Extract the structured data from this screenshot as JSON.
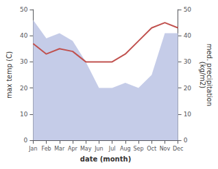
{
  "chart_data": {
    "type": "line",
    "xlabel": "date (month)",
    "ylabel": "max temp (C)",
    "y2label": "med. precipitation\n(kg/m2)",
    "categories": [
      "Jan",
      "Feb",
      "Mar",
      "Apr",
      "May",
      "Jun",
      "Jul",
      "Aug",
      "Sep",
      "Oct",
      "Nov",
      "Dec"
    ],
    "series": [
      {
        "type": "line",
        "color": "#c0504d",
        "values": [
          37,
          33,
          35,
          34,
          30,
          30,
          30,
          33,
          38,
          43,
          45,
          43
        ]
      },
      {
        "type": "area",
        "axis": "y2",
        "color": "#c5cce8",
        "values": [
          46,
          39,
          41,
          38,
          30,
          20,
          20,
          22,
          20,
          25,
          41,
          41
        ]
      }
    ],
    "ylim": [
      0,
      50
    ],
    "yticks": [
      0,
      10,
      20,
      30,
      40,
      50
    ],
    "y2lim": [
      0,
      50
    ],
    "y2ticks": [
      0,
      10,
      20,
      30,
      40,
      50
    ],
    "grid": false
  }
}
